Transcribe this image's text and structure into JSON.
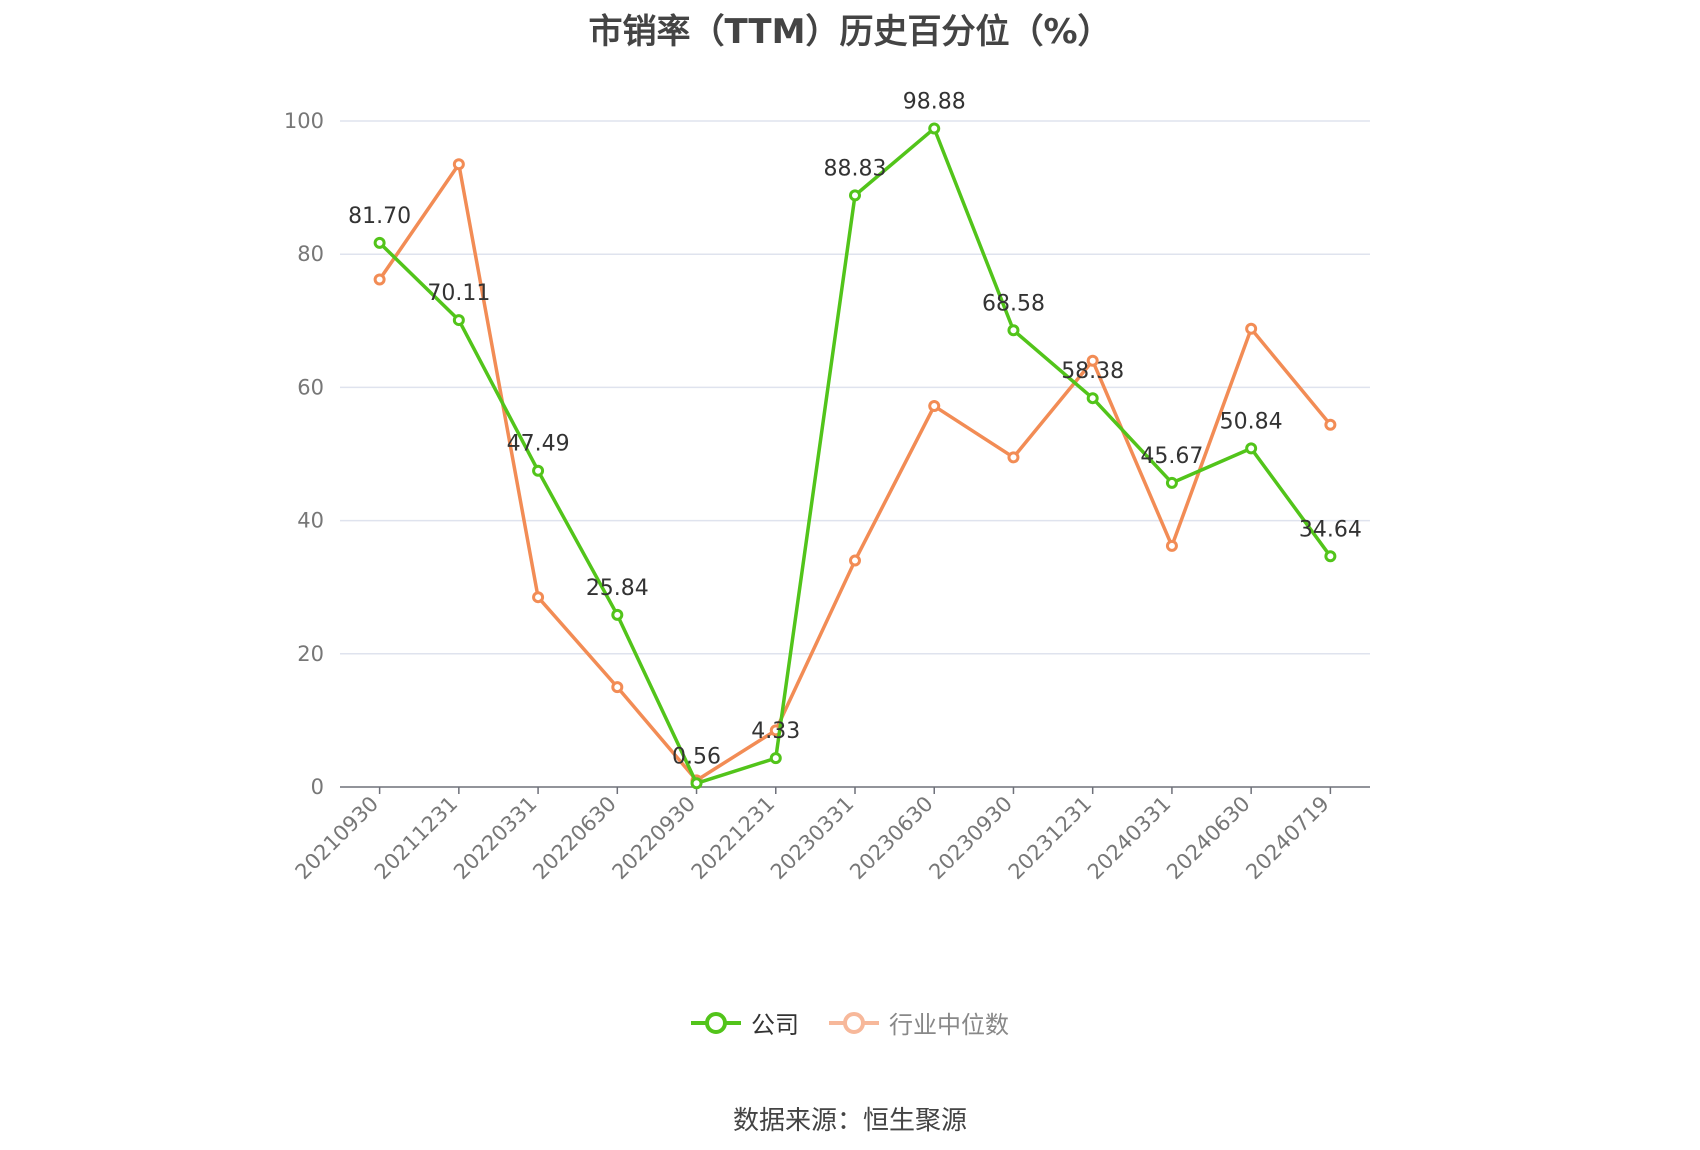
{
  "chart_data": {
    "type": "line",
    "title": "市销率（TTM）历史百分位（%）",
    "categories": [
      "20210930",
      "20211231",
      "20220331",
      "20220630",
      "20220930",
      "20221231",
      "20230331",
      "20230630",
      "20230930",
      "20231231",
      "20240331",
      "20240630",
      "20240719"
    ],
    "series": [
      {
        "name": "公司",
        "color": "#52c41a",
        "values": [
          81.7,
          70.11,
          47.49,
          25.84,
          0.56,
          4.33,
          88.83,
          98.88,
          68.58,
          58.38,
          45.67,
          50.84,
          34.64
        ],
        "labels": [
          "81.70",
          "70.11",
          "47.49",
          "25.84",
          "0.56",
          "4.33",
          "88.83",
          "98.88",
          "68.58",
          "58.38",
          "45.67",
          "50.84",
          "34.64"
        ]
      },
      {
        "name": "行业中位数",
        "color": "#f28c55",
        "values": [
          76.2,
          93.5,
          28.5,
          15.0,
          1.0,
          8.5,
          34.0,
          57.2,
          49.5,
          64.0,
          36.2,
          68.8,
          54.4
        ]
      }
    ],
    "ylim": [
      0,
      100
    ],
    "yticks": [
      0,
      20,
      40,
      60,
      80,
      100
    ],
    "grid": true,
    "legend_position": "bottom"
  },
  "legend": {
    "company": "公司",
    "industry": "行业中位数"
  },
  "source": "数据来源：恒生聚源"
}
